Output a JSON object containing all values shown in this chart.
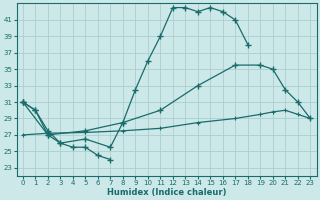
{
  "xlabel": "Humidex (Indice chaleur)",
  "bg_color": "#cce8e8",
  "line_color": "#1a6b6b",
  "grid_color": "#aacece",
  "xlim": [
    -0.5,
    23.5
  ],
  "ylim": [
    22,
    43
  ],
  "yticks": [
    23,
    25,
    27,
    29,
    31,
    33,
    35,
    37,
    39,
    41
  ],
  "xticks": [
    0,
    1,
    2,
    3,
    4,
    5,
    6,
    7,
    8,
    9,
    10,
    11,
    12,
    13,
    14,
    15,
    16,
    17,
    18,
    19,
    20,
    21,
    22,
    23
  ],
  "line1_x": [
    0,
    1,
    2,
    3,
    5,
    7,
    8,
    9,
    10,
    11,
    12,
    13,
    14,
    15,
    16,
    17,
    18
  ],
  "line1_y": [
    31,
    30,
    27.5,
    26,
    26.5,
    25.5,
    28.5,
    32.5,
    36,
    39,
    42.5,
    42.5,
    42,
    42.5,
    42,
    41,
    38
  ],
  "line2_x": [
    0,
    1,
    2,
    3,
    4,
    5,
    6,
    7
  ],
  "line2_y": [
    31,
    30,
    27,
    26,
    25.5,
    25.5,
    24.5,
    24
  ],
  "line3_x": [
    0,
    2,
    5,
    8,
    11,
    14,
    17,
    19,
    20,
    21,
    22,
    23
  ],
  "line3_y": [
    31,
    27,
    27.5,
    28.5,
    30,
    33,
    35.5,
    35.5,
    35,
    32.5,
    31,
    29
  ],
  "line4_x": [
    0,
    2,
    5,
    8,
    11,
    14,
    17,
    19,
    20,
    21,
    22,
    23
  ],
  "line4_y": [
    27,
    27.2,
    27.3,
    27.5,
    27.8,
    28.5,
    29,
    29.5,
    29.8,
    30,
    29.5,
    29
  ]
}
